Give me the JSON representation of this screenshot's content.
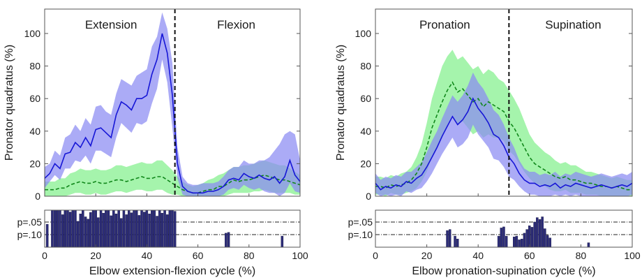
{
  "chart_data": [
    {
      "type": "line",
      "panel": "left",
      "ylabel": "Pronator quadratus (%)",
      "xlabel": "Elbow extension-flexion cycle (%)",
      "xlim": [
        0,
        100
      ],
      "ylim": [
        0,
        115
      ],
      "yticks": [
        0,
        20,
        40,
        60,
        80,
        100
      ],
      "xticks": [
        0,
        20,
        40,
        60,
        80,
        100
      ],
      "divider_x": 51,
      "phase_labels": [
        {
          "text": "Extension",
          "x": 26
        },
        {
          "text": "Flexion",
          "x": 75
        }
      ],
      "x": [
        0,
        2,
        4,
        6,
        8,
        10,
        12,
        14,
        16,
        18,
        20,
        22,
        24,
        26,
        28,
        30,
        32,
        34,
        36,
        38,
        40,
        42,
        44,
        46,
        48,
        50,
        52,
        54,
        56,
        58,
        60,
        62,
        64,
        66,
        68,
        70,
        72,
        74,
        76,
        78,
        80,
        82,
        84,
        86,
        88,
        90,
        92,
        94,
        96,
        98,
        100
      ],
      "series": [
        {
          "color": "#1616d6",
          "band_color": "#8b8bf2",
          "dash": "solid",
          "values": [
            11,
            14,
            20,
            17,
            26,
            27,
            33,
            30,
            36,
            31,
            41,
            42,
            39,
            36,
            50,
            58,
            56,
            53,
            60,
            60,
            62,
            75,
            84,
            100,
            88,
            62,
            20,
            6,
            3,
            2,
            2,
            2,
            3,
            3,
            4,
            6,
            10,
            11,
            10,
            14,
            12,
            11,
            13,
            11,
            10,
            12,
            8,
            12,
            22,
            13,
            9
          ],
          "upper": [
            18,
            20,
            28,
            25,
            36,
            38,
            44,
            40,
            48,
            44,
            55,
            56,
            52,
            50,
            63,
            72,
            70,
            68,
            74,
            76,
            78,
            92,
            98,
            113,
            103,
            82,
            30,
            12,
            8,
            7,
            7,
            8,
            8,
            8,
            9,
            12,
            16,
            18,
            18,
            22,
            20,
            20,
            22,
            22,
            24,
            28,
            32,
            38,
            40,
            38,
            22
          ],
          "lower": [
            5,
            9,
            13,
            10,
            17,
            17,
            22,
            21,
            25,
            20,
            28,
            28,
            26,
            24,
            36,
            45,
            42,
            39,
            45,
            44,
            46,
            57,
            66,
            84,
            70,
            42,
            11,
            1,
            0,
            0,
            0,
            0,
            0,
            0,
            0,
            1,
            4,
            5,
            4,
            7,
            5,
            4,
            5,
            3,
            2,
            2,
            0,
            2,
            8,
            3,
            2
          ]
        },
        {
          "color": "#10871a",
          "band_color": "#82f08c",
          "dash": "dashed",
          "values": [
            4,
            4,
            4,
            5,
            5,
            7,
            8,
            9,
            8,
            8,
            9,
            8,
            8,
            9,
            10,
            10,
            9,
            10,
            11,
            12,
            11,
            11,
            12,
            12,
            10,
            8,
            6,
            4,
            3,
            2,
            2,
            3,
            4,
            4,
            6,
            6,
            8,
            10,
            9,
            10,
            10,
            11,
            12,
            13,
            12,
            11,
            10,
            10,
            9,
            8,
            7
          ],
          "upper": [
            9,
            9,
            9,
            11,
            11,
            14,
            15,
            17,
            16,
            16,
            17,
            16,
            16,
            17,
            19,
            19,
            18,
            19,
            20,
            21,
            20,
            20,
            22,
            22,
            19,
            16,
            12,
            9,
            7,
            6,
            7,
            8,
            10,
            11,
            13,
            14,
            16,
            18,
            18,
            19,
            19,
            20,
            21,
            22,
            21,
            20,
            19,
            19,
            17,
            15,
            13
          ],
          "lower": [
            0,
            0,
            0,
            0,
            0,
            1,
            2,
            2,
            1,
            1,
            2,
            1,
            1,
            2,
            3,
            3,
            2,
            3,
            4,
            4,
            3,
            3,
            4,
            4,
            2,
            1,
            1,
            0,
            0,
            0,
            0,
            0,
            0,
            0,
            0,
            0,
            1,
            2,
            2,
            2,
            2,
            3,
            3,
            4,
            3,
            2,
            2,
            2,
            2,
            1,
            1
          ]
        }
      ],
      "pvalue_plot": {
        "ylabels": [
          "p=.05",
          "p=.10"
        ],
        "thresholds": [
          0.05,
          0.1
        ],
        "bars": [
          {
            "x": 1,
            "h": 0.62
          },
          {
            "x": 3,
            "h": 1
          },
          {
            "x": 4,
            "h": 1
          },
          {
            "x": 5,
            "h": 1
          },
          {
            "x": 6,
            "h": 1
          },
          {
            "x": 7,
            "h": 0.88
          },
          {
            "x": 8,
            "h": 1
          },
          {
            "x": 9,
            "h": 1
          },
          {
            "x": 10,
            "h": 0.95
          },
          {
            "x": 11,
            "h": 1
          },
          {
            "x": 12,
            "h": 1
          },
          {
            "x": 13,
            "h": 0.7
          },
          {
            "x": 14,
            "h": 0.9
          },
          {
            "x": 15,
            "h": 1
          },
          {
            "x": 16,
            "h": 0.82
          },
          {
            "x": 17,
            "h": 0.76
          },
          {
            "x": 18,
            "h": 0.94
          },
          {
            "x": 19,
            "h": 1
          },
          {
            "x": 20,
            "h": 1
          },
          {
            "x": 21,
            "h": 0.8
          },
          {
            "x": 22,
            "h": 1
          },
          {
            "x": 23,
            "h": 0.92
          },
          {
            "x": 24,
            "h": 1
          },
          {
            "x": 25,
            "h": 1
          },
          {
            "x": 26,
            "h": 0.85
          },
          {
            "x": 27,
            "h": 1
          },
          {
            "x": 28,
            "h": 0.9
          },
          {
            "x": 29,
            "h": 1
          },
          {
            "x": 30,
            "h": 0.78
          },
          {
            "x": 31,
            "h": 1
          },
          {
            "x": 32,
            "h": 0.88
          },
          {
            "x": 33,
            "h": 1
          },
          {
            "x": 34,
            "h": 0.93
          },
          {
            "x": 35,
            "h": 1
          },
          {
            "x": 36,
            "h": 1
          },
          {
            "x": 37,
            "h": 0.86
          },
          {
            "x": 38,
            "h": 1
          },
          {
            "x": 39,
            "h": 0.95
          },
          {
            "x": 40,
            "h": 1
          },
          {
            "x": 41,
            "h": 0.9
          },
          {
            "x": 42,
            "h": 1
          },
          {
            "x": 43,
            "h": 1
          },
          {
            "x": 44,
            "h": 0.84
          },
          {
            "x": 45,
            "h": 1
          },
          {
            "x": 46,
            "h": 0.92
          },
          {
            "x": 47,
            "h": 1
          },
          {
            "x": 48,
            "h": 0.88
          },
          {
            "x": 49,
            "h": 1
          },
          {
            "x": 50,
            "h": 1
          },
          {
            "x": 51,
            "h": 0.97
          },
          {
            "x": 71,
            "h": 0.38
          },
          {
            "x": 72,
            "h": 0.4
          },
          {
            "x": 93,
            "h": 0.3
          }
        ]
      }
    },
    {
      "type": "line",
      "panel": "right",
      "ylabel": "Pronator quadratus (%)",
      "xlabel": "Elbow pronation-supination cycle (%)",
      "xlim": [
        0,
        100
      ],
      "ylim": [
        0,
        115
      ],
      "yticks": [
        0,
        20,
        40,
        60,
        80,
        100
      ],
      "xticks": [
        0,
        20,
        40,
        60,
        80,
        100
      ],
      "divider_x": 52,
      "phase_labels": [
        {
          "text": "Pronation",
          "x": 27
        },
        {
          "text": "Supination",
          "x": 77
        }
      ],
      "x": [
        0,
        2,
        4,
        6,
        8,
        10,
        12,
        14,
        16,
        18,
        20,
        22,
        24,
        26,
        28,
        30,
        32,
        34,
        36,
        38,
        40,
        42,
        44,
        46,
        48,
        50,
        52,
        54,
        56,
        58,
        60,
        62,
        64,
        66,
        68,
        70,
        72,
        74,
        76,
        78,
        80,
        82,
        84,
        86,
        88,
        90,
        92,
        94,
        96,
        98,
        100
      ],
      "series": [
        {
          "color": "#1616d6",
          "band_color": "#8b8bf2",
          "dash": "solid",
          "values": [
            8,
            4,
            6,
            5,
            7,
            6,
            9,
            8,
            11,
            13,
            18,
            24,
            30,
            37,
            43,
            49,
            44,
            47,
            52,
            60,
            54,
            50,
            45,
            38,
            36,
            31,
            24,
            20,
            14,
            10,
            8,
            8,
            6,
            7,
            6,
            8,
            5,
            7,
            6,
            8,
            7,
            6,
            5,
            6,
            7,
            6,
            5,
            6,
            7,
            6,
            8
          ],
          "upper": [
            14,
            10,
            12,
            11,
            13,
            12,
            15,
            15,
            18,
            21,
            27,
            34,
            40,
            48,
            55,
            62,
            58,
            62,
            68,
            76,
            70,
            66,
            60,
            53,
            50,
            44,
            36,
            30,
            22,
            17,
            15,
            15,
            13,
            14,
            13,
            15,
            12,
            14,
            13,
            15,
            14,
            13,
            12,
            13,
            14,
            13,
            12,
            13,
            14,
            13,
            15
          ],
          "lower": [
            2,
            0,
            1,
            0,
            1,
            0,
            3,
            2,
            4,
            5,
            9,
            14,
            20,
            26,
            31,
            36,
            30,
            32,
            36,
            44,
            38,
            34,
            30,
            23,
            22,
            18,
            12,
            10,
            6,
            3,
            1,
            1,
            0,
            0,
            0,
            1,
            0,
            1,
            0,
            1,
            0,
            0,
            0,
            0,
            0,
            0,
            0,
            0,
            0,
            0,
            1
          ]
        },
        {
          "color": "#10871a",
          "band_color": "#82f08c",
          "dash": "dashed",
          "values": [
            6,
            6,
            5,
            7,
            6,
            7,
            8,
            10,
            14,
            20,
            30,
            42,
            50,
            58,
            65,
            70,
            64,
            66,
            62,
            58,
            60,
            55,
            58,
            56,
            54,
            52,
            46,
            42,
            36,
            30,
            24,
            20,
            18,
            16,
            14,
            12,
            11,
            12,
            10,
            10,
            9,
            8,
            8,
            7,
            6,
            6,
            5,
            6,
            5,
            4,
            4
          ],
          "upper": [
            12,
            12,
            11,
            13,
            12,
            14,
            15,
            18,
            24,
            32,
            45,
            60,
            70,
            80,
            86,
            90,
            84,
            86,
            82,
            78,
            80,
            75,
            78,
            76,
            72,
            70,
            65,
            60,
            54,
            46,
            38,
            33,
            30,
            27,
            25,
            22,
            20,
            21,
            19,
            19,
            17,
            15,
            15,
            14,
            13,
            12,
            11,
            12,
            11,
            10,
            10
          ],
          "lower": [
            1,
            1,
            0,
            2,
            1,
            1,
            2,
            3,
            5,
            9,
            15,
            24,
            30,
            36,
            44,
            50,
            44,
            46,
            42,
            38,
            40,
            36,
            38,
            36,
            36,
            34,
            28,
            25,
            20,
            15,
            11,
            8,
            7,
            6,
            4,
            3,
            3,
            4,
            2,
            2,
            2,
            1,
            1,
            1,
            0,
            0,
            0,
            0,
            0,
            0,
            0
          ]
        }
      ],
      "pvalue_plot": {
        "ylabels": [
          "p=.05",
          "p=.10"
        ],
        "thresholds": [
          0.05,
          0.1
        ],
        "bars": [
          {
            "x": 28,
            "h": 0.45
          },
          {
            "x": 29,
            "h": 0.48
          },
          {
            "x": 31,
            "h": 0.3
          },
          {
            "x": 32,
            "h": 0.22
          },
          {
            "x": 48,
            "h": 0.3
          },
          {
            "x": 49,
            "h": 0.52
          },
          {
            "x": 50,
            "h": 0.55
          },
          {
            "x": 51,
            "h": 0.3
          },
          {
            "x": 54,
            "h": 0.28
          },
          {
            "x": 55,
            "h": 0.3
          },
          {
            "x": 56,
            "h": 0.2
          },
          {
            "x": 57,
            "h": 0.22
          },
          {
            "x": 58,
            "h": 0.38
          },
          {
            "x": 59,
            "h": 0.48
          },
          {
            "x": 60,
            "h": 0.58
          },
          {
            "x": 61,
            "h": 0.54
          },
          {
            "x": 62,
            "h": 0.68
          },
          {
            "x": 63,
            "h": 0.8
          },
          {
            "x": 64,
            "h": 0.75
          },
          {
            "x": 65,
            "h": 0.82
          },
          {
            "x": 66,
            "h": 0.5
          },
          {
            "x": 67,
            "h": 0.32
          },
          {
            "x": 68,
            "h": 0.25
          },
          {
            "x": 83,
            "h": 0.12
          }
        ]
      }
    }
  ]
}
